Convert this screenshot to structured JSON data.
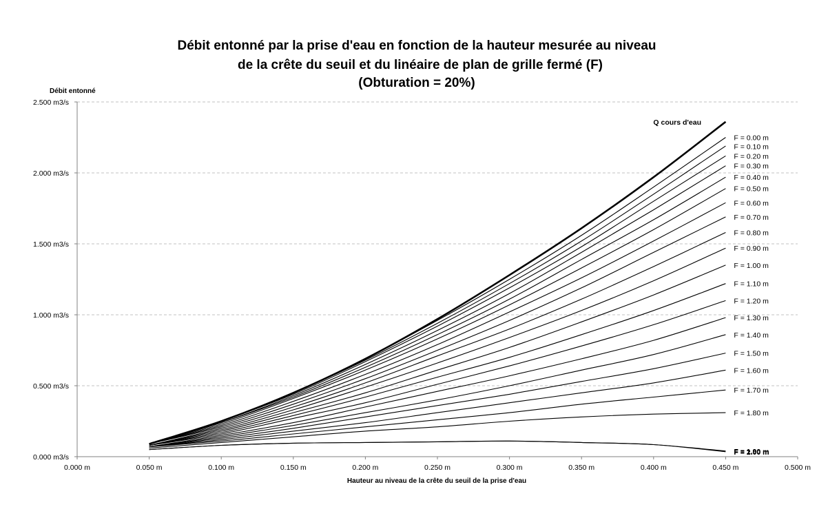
{
  "chart_data": {
    "type": "line",
    "title": [
      "Débit entonné par la prise d'eau en fonction  de la hauteur mesurée au niveau",
      "de la crête du seuil et du linéaire de plan de grille fermé (F)",
      "(Obturation = 20%)"
    ],
    "xlabel": "Hauteur au niveau de la crête du seuil de la prise d'eau",
    "ylabel": "Débit entonné",
    "xlim": [
      0,
      0.5
    ],
    "ylim": [
      0,
      2.5
    ],
    "x_ticks": [
      0,
      0.05,
      0.1,
      0.15,
      0.2,
      0.25,
      0.3,
      0.35,
      0.4,
      0.45,
      0.5
    ],
    "x_tick_labels": [
      "0.000 m",
      "0.050 m",
      "0.100 m",
      "0.150 m",
      "0.200 m",
      "0.250 m",
      "0.300 m",
      "0.350 m",
      "0.400 m",
      "0.450 m",
      "0.500 m"
    ],
    "y_ticks": [
      0,
      0.5,
      1,
      1.5,
      2,
      2.5
    ],
    "y_tick_labels": [
      "0.000 m3/s",
      "0.500 m3/s",
      "1.000 m3/s",
      "1.500 m3/s",
      "2.000 m3/s",
      "2.500 m3/s"
    ],
    "grid": "horizontal dashed",
    "legend": "none (labels at line ends)",
    "colors": {
      "lines": "#000000",
      "grid": "#c0c0c0",
      "axis": "#808080"
    },
    "x": [
      0.05,
      0.1,
      0.15,
      0.2,
      0.25,
      0.3,
      0.35,
      0.4,
      0.45
    ],
    "series": [
      {
        "name": "Q  cours d'eau",
        "values": [
          0.09,
          0.25,
          0.45,
          0.69,
          0.97,
          1.28,
          1.61,
          1.97,
          2.36
        ],
        "bold": true
      },
      {
        "name": "F = 0.00 m",
        "values": [
          0.09,
          0.25,
          0.45,
          0.69,
          0.96,
          1.25,
          1.56,
          1.9,
          2.25
        ]
      },
      {
        "name": "F = 0.10 m",
        "values": [
          0.09,
          0.25,
          0.45,
          0.68,
          0.94,
          1.22,
          1.52,
          1.85,
          2.19
        ]
      },
      {
        "name": "F = 0.20 m",
        "values": [
          0.09,
          0.25,
          0.44,
          0.67,
          0.92,
          1.19,
          1.48,
          1.8,
          2.12
        ]
      },
      {
        "name": "F = 0.30 m",
        "values": [
          0.09,
          0.24,
          0.43,
          0.65,
          0.89,
          1.15,
          1.44,
          1.74,
          2.05
        ]
      },
      {
        "name": "F = 0.40 m",
        "values": [
          0.09,
          0.24,
          0.42,
          0.63,
          0.86,
          1.11,
          1.39,
          1.67,
          1.97
        ]
      },
      {
        "name": "F = 0.50 m",
        "values": [
          0.09,
          0.23,
          0.41,
          0.61,
          0.83,
          1.07,
          1.33,
          1.6,
          1.89
        ]
      },
      {
        "name": "F = 0.60 m",
        "values": [
          0.09,
          0.22,
          0.39,
          0.58,
          0.79,
          1.02,
          1.26,
          1.52,
          1.79
        ]
      },
      {
        "name": "F = 0.70 m",
        "values": [
          0.09,
          0.21,
          0.37,
          0.55,
          0.75,
          0.96,
          1.19,
          1.44,
          1.69
        ]
      },
      {
        "name": "F = 0.80 m",
        "values": [
          0.08,
          0.2,
          0.35,
          0.52,
          0.71,
          0.9,
          1.11,
          1.34,
          1.58
        ]
      },
      {
        "name": "F = 0.90 m",
        "values": [
          0.08,
          0.19,
          0.33,
          0.49,
          0.66,
          0.84,
          1.03,
          1.24,
          1.47
        ]
      },
      {
        "name": "F = 1.00 m",
        "values": [
          0.08,
          0.18,
          0.31,
          0.45,
          0.61,
          0.77,
          0.95,
          1.14,
          1.35
        ]
      },
      {
        "name": "F = 1.10 m",
        "values": [
          0.08,
          0.17,
          0.29,
          0.42,
          0.56,
          0.7,
          0.86,
          1.03,
          1.22
        ]
      },
      {
        "name": "F = 1.20 m",
        "values": [
          0.08,
          0.16,
          0.27,
          0.38,
          0.51,
          0.64,
          0.78,
          0.93,
          1.1
        ]
      },
      {
        "name": "F = 1.30 m",
        "values": [
          0.07,
          0.15,
          0.24,
          0.35,
          0.46,
          0.57,
          0.69,
          0.82,
          0.98
        ]
      },
      {
        "name": "F = 1.40 m",
        "values": [
          0.07,
          0.14,
          0.22,
          0.31,
          0.4,
          0.5,
          0.61,
          0.72,
          0.86
        ]
      },
      {
        "name": "F = 1.50 m",
        "values": [
          0.07,
          0.13,
          0.2,
          0.28,
          0.36,
          0.44,
          0.53,
          0.62,
          0.73
        ]
      },
      {
        "name": "F = 1.60 m",
        "values": [
          0.07,
          0.12,
          0.18,
          0.24,
          0.31,
          0.38,
          0.45,
          0.52,
          0.61
        ]
      },
      {
        "name": "F = 1.70 m",
        "values": [
          0.07,
          0.11,
          0.16,
          0.21,
          0.26,
          0.31,
          0.37,
          0.42,
          0.47
        ]
      },
      {
        "name": "F = 1.80 m",
        "values": [
          0.06,
          0.1,
          0.14,
          0.18,
          0.21,
          0.25,
          0.28,
          0.3,
          0.31
        ]
      },
      {
        "name": "F = 1.90 m",
        "values": [
          0.05,
          0.08,
          0.095,
          0.1,
          0.105,
          0.11,
          0.1,
          0.085,
          0.04
        ]
      },
      {
        "name": "F = 2.00 m",
        "values": [
          0.05,
          0.08,
          0.095,
          0.1,
          0.105,
          0.11,
          0.1,
          0.085,
          0.035
        ]
      }
    ]
  }
}
